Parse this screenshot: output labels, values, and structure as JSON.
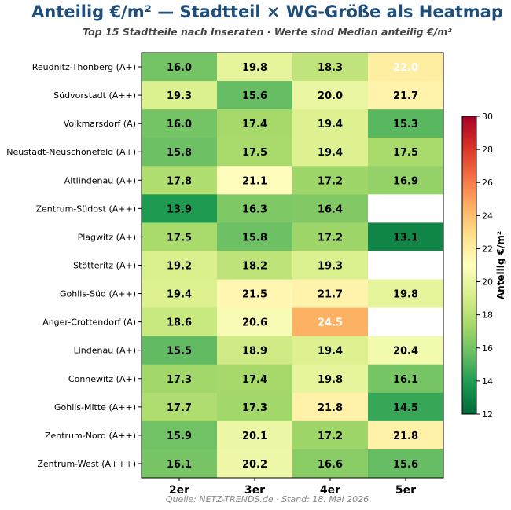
{
  "header": {
    "title": "Anteilig €/m² — Stadtteil × WG-Größe als Heatmap",
    "subtitle": "Top 15 Stadtteile nach Inseraten · Werte sind Median anteilig €/m²"
  },
  "footer": {
    "source": "Quelle: NETZ-TRENDS.de · Stand: 18. Mai 2026"
  },
  "chart_data": {
    "type": "heatmap",
    "title": "Anteilig €/m² — Stadtteil × WG-Größe als Heatmap",
    "subtitle": "Top 15 Stadtteile nach Inseraten · Werte sind Median anteilig €/m²",
    "x_categories": [
      "2er",
      "3er",
      "4er",
      "5er"
    ],
    "y_categories": [
      "Reudnitz-Thonberg (A+)",
      "Südvorstadt (A++)",
      "Volkmarsdorf (A)",
      "Neustadt-Neuschönefeld (A+)",
      "Altlindenau (A+)",
      "Zentrum-Südost (A++)",
      "Plagwitz (A+)",
      "Stötteritz (A+)",
      "Gohlis-Süd (A++)",
      "Anger-Crottendorf (A)",
      "Lindenau (A+)",
      "Connewitz (A+)",
      "Gohlis-Mitte (A++)",
      "Zentrum-Nord (A++)",
      "Zentrum-West (A+++)"
    ],
    "values": [
      [
        16.0,
        19.8,
        18.3,
        22.0
      ],
      [
        19.3,
        15.6,
        20.0,
        21.7
      ],
      [
        16.0,
        17.4,
        19.4,
        15.3
      ],
      [
        15.8,
        17.5,
        19.4,
        17.5
      ],
      [
        17.8,
        21.1,
        17.2,
        16.9
      ],
      [
        13.9,
        16.3,
        16.4,
        null
      ],
      [
        17.5,
        15.8,
        17.2,
        13.1
      ],
      [
        19.2,
        18.2,
        19.3,
        null
      ],
      [
        19.4,
        21.5,
        21.7,
        19.8
      ],
      [
        18.6,
        20.6,
        24.5,
        null
      ],
      [
        15.5,
        18.9,
        19.4,
        20.4
      ],
      [
        17.3,
        17.4,
        19.8,
        16.1
      ],
      [
        17.7,
        17.3,
        21.8,
        14.5
      ],
      [
        15.9,
        20.1,
        17.2,
        21.8
      ],
      [
        16.1,
        20.2,
        16.6,
        15.6
      ]
    ],
    "colorscale": "RdYlGn_r",
    "vmin": 12,
    "vmax": 30,
    "colorbar": {
      "label": "Anteilig €/m²",
      "ticks": [
        12,
        14,
        16,
        18,
        20,
        22,
        24,
        26,
        28,
        30
      ]
    },
    "text_color_threshold": 22
  }
}
